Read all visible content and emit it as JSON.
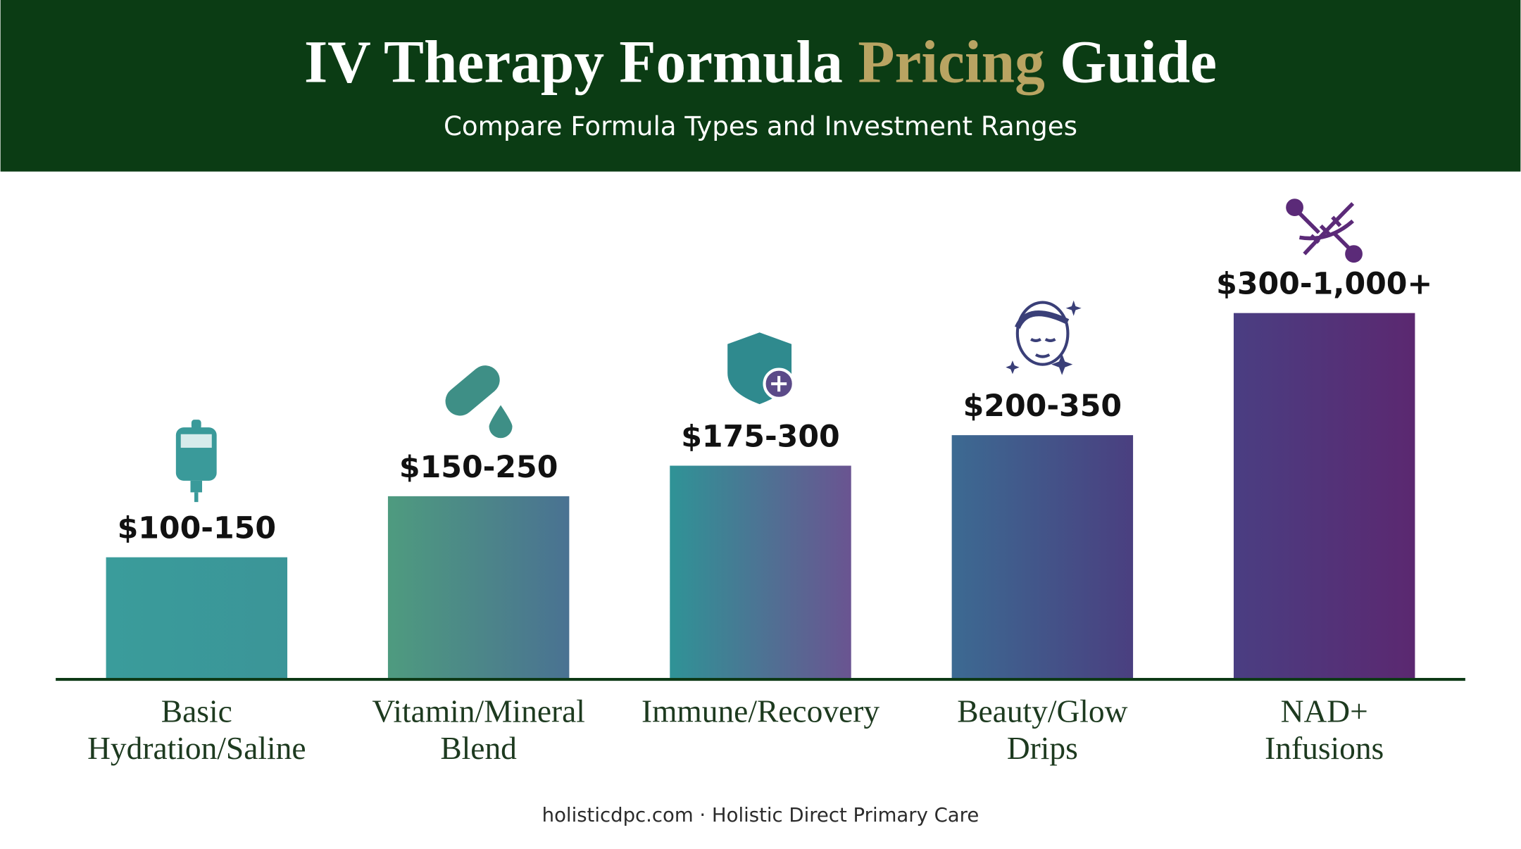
{
  "chart_data": {
    "type": "bar",
    "title": [
      "IV Therapy Formula",
      "Pricing",
      "Guide"
    ],
    "subtitle": "Compare Formula Types and Investment Ranges",
    "categories": [
      "Basic Hydration/Saline",
      "Vitamin/Mineral Blend",
      "Immune/Recovery",
      "Beauty/Glow Drips",
      "NAD+ Infusions"
    ],
    "values": [
      100,
      150,
      175,
      200,
      300
    ],
    "value_labels": [
      "$100-150",
      "$150-250",
      "$175-300",
      "$200-350",
      "$300-1,000+"
    ],
    "colors": [
      [
        "#3a9c9b",
        "#3b9598"
      ],
      [
        "#4e9b7f",
        "#4a7292"
      ],
      [
        "#2f9396",
        "#6a5491"
      ],
      [
        "#3c6a92",
        "#4a3f80"
      ],
      [
        "#4a3e82",
        "#5b2870"
      ]
    ],
    "ylim": [
      0,
      400
    ],
    "footer": "holisticdpc.com · Holistic Direct Primary Care"
  }
}
